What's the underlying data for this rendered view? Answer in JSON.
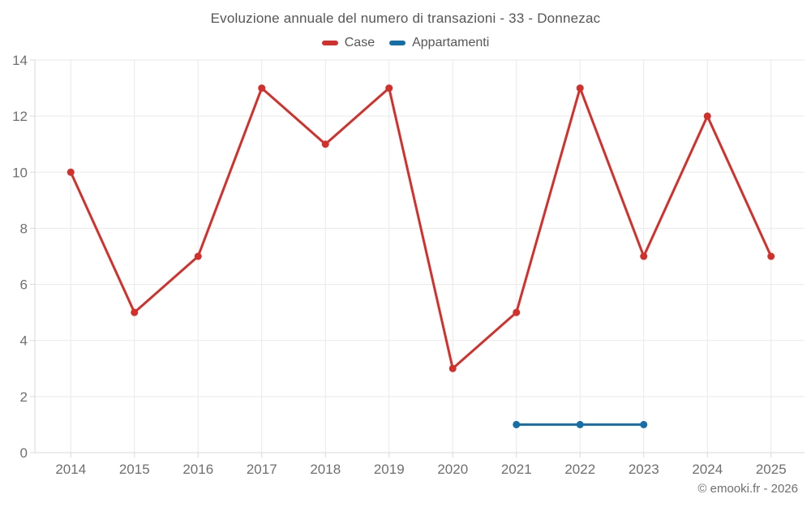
{
  "header": {
    "title": "Evoluzione annuale del numero di transazioni - 33 - Donnezac"
  },
  "legend": {
    "items": [
      {
        "label": "Case",
        "color": "#d3302c"
      },
      {
        "label": "Appartamenti",
        "color": "#146ea7"
      }
    ]
  },
  "footer": {
    "attribution": "© emooki.fr - 2026"
  },
  "colors": {
    "grid": "#e9e9e9",
    "axis": "#d9d9d9",
    "axis_label": "#6f6f6f",
    "title_text": "#565656"
  },
  "chart_data": {
    "type": "line",
    "title": "Evoluzione annuale del numero di transazioni - 33 - Donnezac",
    "categories": [
      "2014",
      "2015",
      "2016",
      "2017",
      "2018",
      "2019",
      "2020",
      "2021",
      "2022",
      "2023",
      "2024",
      "2025"
    ],
    "series": [
      {
        "name": "Case",
        "color": "#d3302c",
        "values": [
          10,
          5,
          7,
          13,
          11,
          13,
          3,
          5,
          13,
          7,
          12,
          7
        ]
      },
      {
        "name": "Appartamenti",
        "color": "#146ea7",
        "values": [
          null,
          null,
          null,
          null,
          null,
          null,
          null,
          1,
          1,
          1,
          null,
          null
        ]
      }
    ],
    "ylim": [
      0,
      14
    ],
    "yticks": [
      0,
      2,
      4,
      6,
      8,
      10,
      12,
      14
    ],
    "grid": true,
    "legend_position": "top",
    "xlabel": "",
    "ylabel": ""
  }
}
